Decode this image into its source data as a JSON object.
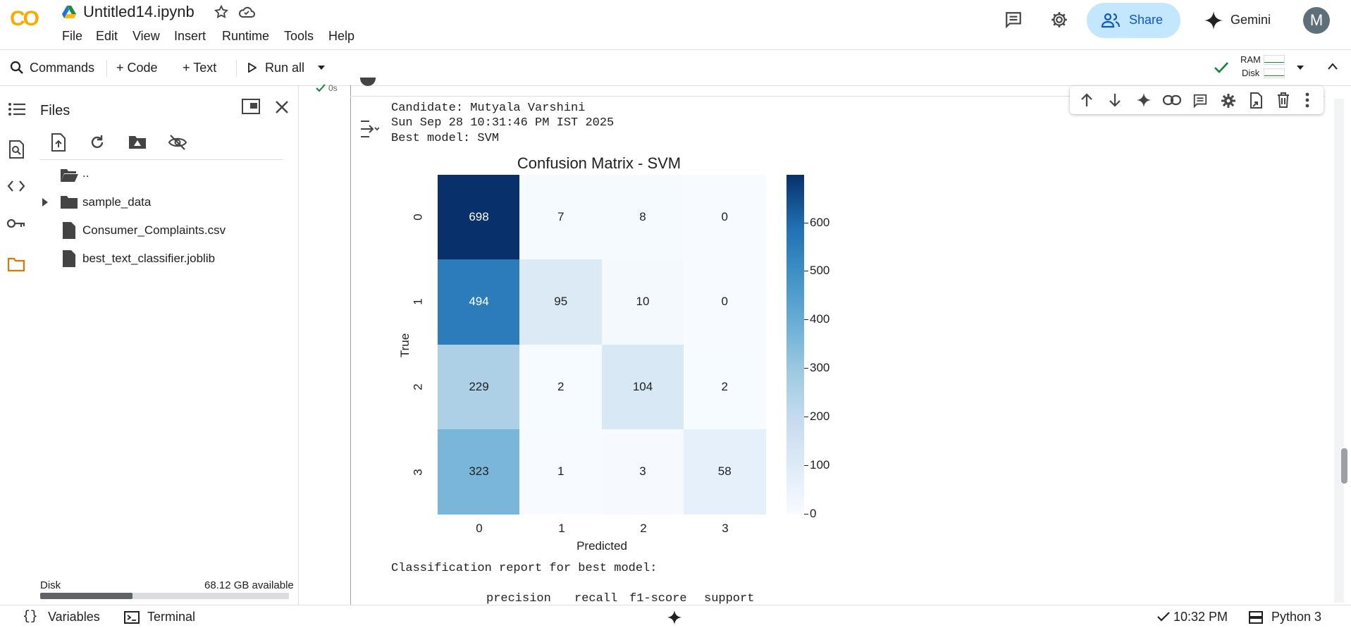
{
  "app": {
    "logo_text": "CO",
    "notebook_title": "Untitled14.ipynb",
    "menu": [
      "File",
      "Edit",
      "View",
      "Insert",
      "Runtime",
      "Tools",
      "Help"
    ],
    "share_label": "Share",
    "gemini_label": "Gemini",
    "avatar_letter": "M"
  },
  "toolbar": {
    "commands_label": "Commands",
    "code_label": "+ Code",
    "text_label": "+ Text",
    "run_all_label": "Run all",
    "ram_label": "RAM",
    "disk_label": "Disk"
  },
  "files_panel": {
    "title": "Files",
    "items": [
      {
        "name": "..",
        "type": "parent-folder"
      },
      {
        "name": "sample_data",
        "type": "folder"
      },
      {
        "name": "Consumer_Complaints.csv",
        "type": "file"
      },
      {
        "name": "best_text_classifier.joblib",
        "type": "file"
      }
    ],
    "disk_label": "Disk",
    "disk_available": "68.12 GB available",
    "disk_used_fraction": 0.37
  },
  "cell": {
    "exec_time": "0s",
    "output_lines": [
      "Candidate: Mutyala Varshini",
      "Sun Sep 28 10:31:46 PM IST 2025",
      "Best model: SVM"
    ],
    "report_heading": "Classification report for best model:",
    "report_columns": [
      "precision",
      "recall",
      "f1-score",
      "support"
    ]
  },
  "chart_data": {
    "type": "heatmap",
    "title": "Confusion Matrix - SVM",
    "xlabel": "Predicted",
    "ylabel": "True",
    "x_ticks": [
      "0",
      "1",
      "2",
      "3"
    ],
    "y_ticks": [
      "0",
      "1",
      "2",
      "3"
    ],
    "matrix": [
      [
        698,
        7,
        8,
        0
      ],
      [
        494,
        95,
        10,
        0
      ],
      [
        229,
        2,
        104,
        2
      ],
      [
        323,
        1,
        3,
        58
      ]
    ],
    "colormap": "Blues",
    "vmin": 0,
    "vmax": 698,
    "colorbar_ticks": [
      0,
      100,
      200,
      300,
      400,
      500,
      600
    ]
  },
  "statusbar": {
    "variables_label": "Variables",
    "terminal_label": "Terminal",
    "time_label": "10:32 PM",
    "runtime_label": "Python 3"
  },
  "colors": {
    "accent": "#0b57d0",
    "share_bg": "#c2e7ff",
    "folder_icon": "#e37400",
    "check": "#188038"
  }
}
